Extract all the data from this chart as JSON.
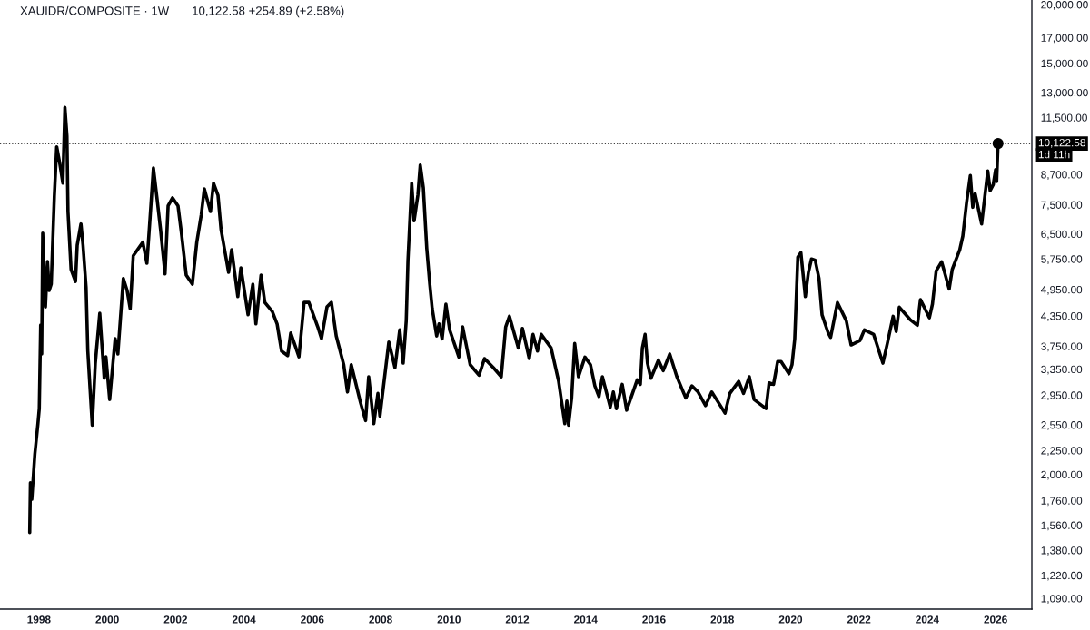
{
  "chart_data": {
    "type": "line",
    "title": "XAUIDR/COMPOSITE · 1W",
    "subtitle": "10,122.58 +254.89 (+2.58%)",
    "annotations": [
      "1d 11h"
    ],
    "series": [
      {
        "color": "#000000",
        "x": [
          1997.73,
          1997.75,
          1997.79,
          1997.88,
          1997.97,
          1998.01,
          1998.05,
          1998.08,
          1998.11,
          1998.19,
          1998.25,
          1998.3,
          1998.36,
          1998.45,
          1998.52,
          1998.61,
          1998.7,
          1998.76,
          1998.82,
          1998.85,
          1998.94,
          1999.07,
          1999.12,
          1999.23,
          1999.29,
          1999.38,
          1999.43,
          1999.56,
          1999.65,
          1999.78,
          1999.91,
          1999.96,
          2000.07,
          2000.23,
          2000.31,
          2000.47,
          2000.58,
          2000.67,
          2000.76,
          2001.04,
          2001.16,
          2001.24,
          2001.35,
          2001.45,
          2001.56,
          2001.69,
          2001.78,
          2001.91,
          2002.07,
          2002.17,
          2002.31,
          2002.49,
          2002.62,
          2002.75,
          2002.84,
          2003.02,
          2003.11,
          2003.24,
          2003.33,
          2003.55,
          2003.64,
          2003.82,
          2003.91,
          2004.12,
          2004.26,
          2004.35,
          2004.5,
          2004.61,
          2004.83,
          2004.97,
          2005.1,
          2005.28,
          2005.37,
          2005.61,
          2005.76,
          2005.9,
          2006.16,
          2006.27,
          2006.43,
          2006.56,
          2006.7,
          2006.92,
          2007.03,
          2007.14,
          2007.41,
          2007.56,
          2007.65,
          2007.8,
          2007.92,
          2007.98,
          2008.24,
          2008.42,
          2008.56,
          2008.66,
          2008.75,
          2008.8,
          2008.91,
          2008.98,
          2009.09,
          2009.16,
          2009.25,
          2009.35,
          2009.44,
          2009.51,
          2009.64,
          2009.71,
          2009.8,
          2009.91,
          2010.02,
          2010.29,
          2010.4,
          2010.62,
          2010.88,
          2011.04,
          2011.3,
          2011.53,
          2011.66,
          2011.77,
          2012.03,
          2012.15,
          2012.35,
          2012.46,
          2012.59,
          2012.7,
          2012.99,
          2013.21,
          2013.39,
          2013.45,
          2013.5,
          2013.59,
          2013.68,
          2013.79,
          2013.98,
          2014.14,
          2014.27,
          2014.39,
          2014.49,
          2014.72,
          2014.81,
          2014.9,
          2015.07,
          2015.2,
          2015.51,
          2015.6,
          2015.66,
          2015.74,
          2015.81,
          2015.91,
          2016.13,
          2016.27,
          2016.46,
          2016.67,
          2016.93,
          2017.11,
          2017.29,
          2017.51,
          2017.69,
          2017.97,
          2018.08,
          2018.22,
          2018.48,
          2018.62,
          2018.79,
          2018.93,
          2019.28,
          2019.37,
          2019.5,
          2019.62,
          2019.72,
          2019.95,
          2020.04,
          2020.12,
          2020.21,
          2020.3,
          2020.43,
          2020.52,
          2020.61,
          2020.72,
          2020.83,
          2020.92,
          2021.1,
          2021.17,
          2021.37,
          2021.63,
          2021.77,
          2022.03,
          2022.16,
          2022.43,
          2022.7,
          2022.83,
          2023.0,
          2023.09,
          2023.18,
          2023.49,
          2023.71,
          2023.8,
          2024.06,
          2024.15,
          2024.26,
          2024.42,
          2024.64,
          2024.73,
          2024.95,
          2025.04,
          2025.15,
          2025.26,
          2025.33,
          2025.4,
          2025.59,
          2025.77,
          2025.84,
          2025.93,
          2026.0,
          2026.03,
          2026.07
        ],
        "values": [
          1504,
          1921,
          1771,
          2211,
          2565,
          2763,
          4160,
          3608,
          6529,
          4546,
          5679,
          4926,
          5082,
          7799,
          9962,
          9181,
          8336,
          12082,
          10494,
          7254,
          5463,
          5150,
          6152,
          6826,
          6152,
          4999,
          3661,
          2547,
          3451,
          4407,
          3204,
          3560,
          2888,
          3891,
          3608,
          5226,
          4926,
          4506,
          5840,
          6243,
          5629,
          6826,
          8979,
          7799,
          6637,
          5343,
          7460,
          7755,
          7460,
          6529,
          5313,
          5082,
          6243,
          7136,
          8107,
          7254,
          8336,
          7859,
          6637,
          5384,
          6017,
          4781,
          5505,
          4373,
          5082,
          4183,
          5313,
          4648,
          4446,
          4183,
          3661,
          3581,
          4002,
          3560,
          4648,
          4648,
          4123,
          3891,
          4546,
          4648,
          3943,
          3425,
          2996,
          3425,
          2846,
          2604,
          3228,
          2565,
          2975,
          2662,
          3828,
          3375,
          4063,
          3451,
          4253,
          5712,
          8336,
          6930,
          7859,
          9112,
          8153,
          6062,
          5075,
          4506,
          3943,
          4183,
          3886,
          4607,
          4063,
          3555,
          4123,
          3425,
          3253,
          3529,
          3375,
          3228,
          4123,
          4342,
          3717,
          4092,
          3529,
          3973,
          3661,
          3973,
          3717,
          3156,
          2565,
          2866,
          2547,
          2910,
          3800,
          3228,
          3555,
          3425,
          3087,
          2930,
          3228,
          2783,
          2996,
          2762,
          3110,
          2741,
          3180,
          3110,
          3717,
          3973,
          3451,
          3204,
          3502,
          3326,
          3608,
          3228,
          2910,
          3087,
          2996,
          2803,
          2996,
          2783,
          2701,
          2975,
          3156,
          2975,
          3228,
          2888,
          2762,
          3133,
          3110,
          3478,
          3478,
          3276,
          3425,
          3886,
          5799,
          5929,
          4781,
          5384,
          5750,
          5712,
          5226,
          4373,
          4002,
          3914,
          4642,
          4247,
          3772,
          3857,
          4063,
          3973,
          3451,
          3800,
          4342,
          4032,
          4540,
          4277,
          4153,
          4711,
          4310,
          4607,
          5425,
          5671,
          4963,
          5463,
          6017,
          6434,
          7574,
          8654,
          7407,
          7919,
          6826,
          8848,
          8035,
          8277,
          8911,
          8400,
          10122.58
        ]
      },
      {
        "type": "scatter",
        "color": "#000000",
        "marker": "circle",
        "x": [
          2026.07
        ],
        "values": [
          10122.58
        ]
      }
    ],
    "xlim": [
      1996.86,
      2027.06
    ],
    "xticks": [
      1998,
      2000,
      2002,
      2004,
      2006,
      2008,
      2010,
      2012,
      2014,
      2016,
      2018,
      2020,
      2022,
      2024,
      2026
    ],
    "ylim": [
      1034,
      20450
    ],
    "log": "y",
    "yticks": [
      {
        "value": 1090,
        "label": "1,090.00"
      },
      {
        "value": 1220,
        "label": "1,220.00"
      },
      {
        "value": 1380,
        "label": "1,380.00"
      },
      {
        "value": 1560,
        "label": "1,560.00"
      },
      {
        "value": 1760,
        "label": "1,760.00"
      },
      {
        "value": 2000,
        "label": "2,000.00"
      },
      {
        "value": 2250,
        "label": "2,250.00"
      },
      {
        "value": 2550,
        "label": "2,550.00"
      },
      {
        "value": 2950,
        "label": "2,950.00"
      },
      {
        "value": 3350,
        "label": "3,350.00"
      },
      {
        "value": 3750,
        "label": "3,750.00"
      },
      {
        "value": 4350,
        "label": "4,350.00"
      },
      {
        "value": 4950,
        "label": "4,950.00"
      },
      {
        "value": 5750,
        "label": "5,750.00"
      },
      {
        "value": 6500,
        "label": "6,500.00"
      },
      {
        "value": 7500,
        "label": "7,500.00"
      },
      {
        "value": 8700,
        "label": "8,700.00"
      },
      {
        "value": 11500,
        "label": "11,500.00"
      },
      {
        "value": 13000,
        "label": "13,000.00"
      },
      {
        "value": 15000,
        "label": "15,000.00"
      },
      {
        "value": 17000,
        "label": "17,000.00"
      },
      {
        "value": 20000,
        "label": "20,000.00"
      }
    ],
    "ref_lines": [
      {
        "axis": "y",
        "value": 10122.58,
        "label": "10,122.58",
        "color": "#000000",
        "line_style": "dotted"
      }
    ],
    "grid": false,
    "legend": false,
    "marker": "none",
    "line_style": "solid"
  }
}
